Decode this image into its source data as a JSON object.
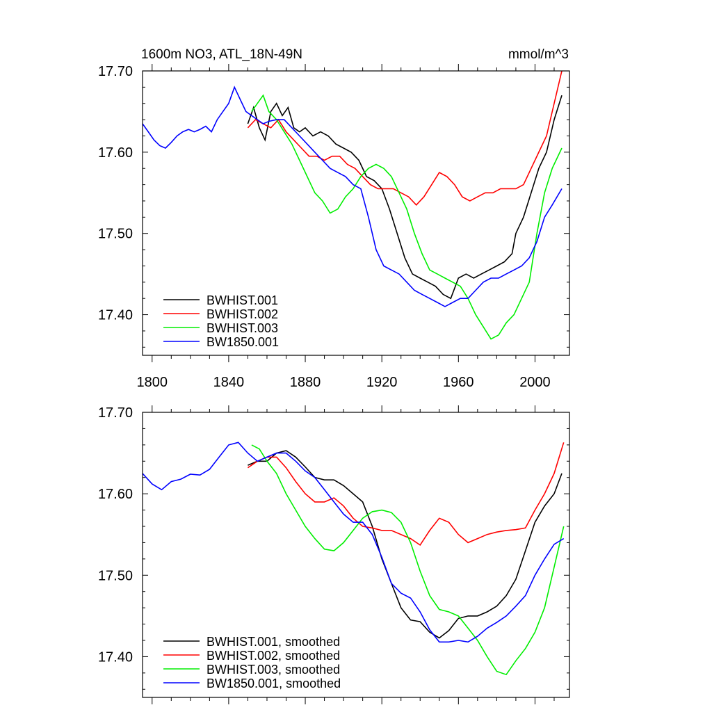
{
  "chart_data": [
    {
      "type": "line",
      "title": "1600m NO3, ATL_18N-49N",
      "units": "mmol/m^3",
      "xlim": [
        1795,
        2018
      ],
      "ylim": [
        17.35,
        17.7
      ],
      "xticks": [
        1800,
        1840,
        1880,
        1920,
        1960,
        2000
      ],
      "xtick_labels": [
        "1800",
        "1840",
        "1880",
        "1920",
        "1960",
        "2000"
      ],
      "yticks": [
        17.4,
        17.5,
        17.6,
        17.7
      ],
      "ytick_labels": [
        "17.40",
        "17.50",
        "17.60",
        "17.70"
      ],
      "legend_position": "bottom-left",
      "series": [
        {
          "name": "BWHIST.001",
          "color": "#000000",
          "x": [
            1850,
            1853,
            1856,
            1859,
            1862,
            1865,
            1868,
            1871,
            1874,
            1877,
            1880,
            1884,
            1888,
            1892,
            1896,
            1900,
            1904,
            1908,
            1912,
            1916,
            1920,
            1924,
            1928,
            1932,
            1936,
            1940,
            1944,
            1948,
            1952,
            1956,
            1960,
            1964,
            1968,
            1972,
            1976,
            1980,
            1984,
            1988,
            1990,
            1994,
            1998,
            2002,
            2006,
            2010,
            2014
          ],
          "y": [
            17.635,
            17.655,
            17.63,
            17.615,
            17.65,
            17.66,
            17.645,
            17.655,
            17.63,
            17.625,
            17.63,
            17.62,
            17.625,
            17.62,
            17.61,
            17.605,
            17.6,
            17.59,
            17.57,
            17.565,
            17.555,
            17.53,
            17.5,
            17.47,
            17.45,
            17.445,
            17.44,
            17.435,
            17.425,
            17.42,
            17.445,
            17.45,
            17.445,
            17.45,
            17.455,
            17.46,
            17.465,
            17.475,
            17.5,
            17.52,
            17.55,
            17.58,
            17.6,
            17.64,
            17.67
          ]
        },
        {
          "name": "BWHIST.002",
          "color": "#ff0000",
          "x": [
            1850,
            1854,
            1858,
            1862,
            1866,
            1870,
            1874,
            1878,
            1882,
            1886,
            1890,
            1894,
            1898,
            1902,
            1906,
            1910,
            1914,
            1918,
            1922,
            1926,
            1930,
            1934,
            1938,
            1942,
            1946,
            1950,
            1954,
            1958,
            1962,
            1966,
            1970,
            1974,
            1978,
            1982,
            1986,
            1990,
            1994,
            1998,
            2002,
            2006,
            2010,
            2014
          ],
          "y": [
            17.63,
            17.64,
            17.635,
            17.63,
            17.64,
            17.625,
            17.615,
            17.605,
            17.595,
            17.595,
            17.59,
            17.595,
            17.595,
            17.585,
            17.58,
            17.57,
            17.56,
            17.555,
            17.555,
            17.555,
            17.55,
            17.545,
            17.535,
            17.545,
            17.56,
            17.575,
            17.57,
            17.56,
            17.545,
            17.54,
            17.545,
            17.55,
            17.55,
            17.555,
            17.555,
            17.555,
            17.56,
            17.58,
            17.6,
            17.62,
            17.66,
            17.7
          ]
        },
        {
          "name": "BWHIST.003",
          "color": "#00ee00",
          "x": [
            1852,
            1855,
            1858,
            1861,
            1865,
            1869,
            1873,
            1877,
            1881,
            1885,
            1889,
            1893,
            1897,
            1901,
            1905,
            1909,
            1913,
            1917,
            1921,
            1925,
            1929,
            1933,
            1937,
            1941,
            1945,
            1949,
            1953,
            1957,
            1961,
            1965,
            1969,
            1973,
            1977,
            1981,
            1985,
            1989,
            1993,
            1997,
            2001,
            2005,
            2009,
            2014
          ],
          "y": [
            17.65,
            17.66,
            17.67,
            17.65,
            17.64,
            17.625,
            17.61,
            17.59,
            17.57,
            17.55,
            17.54,
            17.525,
            17.53,
            17.545,
            17.555,
            17.57,
            17.58,
            17.585,
            17.58,
            17.57,
            17.55,
            17.53,
            17.5,
            17.475,
            17.455,
            17.45,
            17.445,
            17.44,
            17.435,
            17.42,
            17.4,
            17.385,
            17.37,
            17.375,
            17.39,
            17.4,
            17.42,
            17.44,
            17.5,
            17.55,
            17.58,
            17.605
          ]
        },
        {
          "name": "BW1850.001",
          "color": "#0000ff",
          "x": [
            1795,
            1798,
            1801,
            1804,
            1807,
            1810,
            1813,
            1816,
            1819,
            1822,
            1825,
            1828,
            1831,
            1834,
            1837,
            1840,
            1843,
            1846,
            1849,
            1852,
            1855,
            1858,
            1861,
            1865,
            1869,
            1873,
            1877,
            1881,
            1885,
            1889,
            1893,
            1897,
            1901,
            1905,
            1909,
            1913,
            1917,
            1921,
            1925,
            1929,
            1933,
            1937,
            1941,
            1945,
            1949,
            1953,
            1957,
            1961,
            1965,
            1969,
            1973,
            1977,
            1981,
            1985,
            1989,
            1993,
            1997,
            2001,
            2005,
            2009,
            2014
          ],
          "y": [
            17.635,
            17.625,
            17.615,
            17.608,
            17.605,
            17.612,
            17.62,
            17.625,
            17.628,
            17.625,
            17.628,
            17.632,
            17.625,
            17.64,
            17.65,
            17.66,
            17.68,
            17.665,
            17.65,
            17.645,
            17.64,
            17.635,
            17.638,
            17.64,
            17.64,
            17.63,
            17.62,
            17.61,
            17.6,
            17.59,
            17.58,
            17.575,
            17.57,
            17.56,
            17.555,
            17.52,
            17.48,
            17.46,
            17.455,
            17.45,
            17.44,
            17.43,
            17.425,
            17.42,
            17.415,
            17.41,
            17.415,
            17.42,
            17.42,
            17.43,
            17.44,
            17.445,
            17.445,
            17.45,
            17.455,
            17.46,
            17.47,
            17.49,
            17.52,
            17.535,
            17.555
          ]
        }
      ]
    },
    {
      "type": "line",
      "xlim": [
        1795,
        2018
      ],
      "ylim": [
        17.35,
        17.7
      ],
      "yticks": [
        17.4,
        17.5,
        17.6,
        17.7
      ],
      "ytick_labels": [
        "17.40",
        "17.50",
        "17.60",
        "17.70"
      ],
      "legend_position": "bottom-left",
      "series": [
        {
          "name": "BWHIST.001, smoothed",
          "color": "#000000",
          "x": [
            1850,
            1855,
            1860,
            1865,
            1870,
            1875,
            1880,
            1885,
            1890,
            1895,
            1900,
            1905,
            1910,
            1915,
            1920,
            1925,
            1930,
            1935,
            1940,
            1945,
            1950,
            1955,
            1960,
            1965,
            1970,
            1975,
            1980,
            1985,
            1990,
            1995,
            2000,
            2005,
            2010,
            2014
          ],
          "y": [
            17.635,
            17.64,
            17.64,
            17.65,
            17.653,
            17.645,
            17.633,
            17.62,
            17.617,
            17.617,
            17.61,
            17.6,
            17.59,
            17.56,
            17.52,
            17.49,
            17.46,
            17.445,
            17.443,
            17.43,
            17.423,
            17.432,
            17.447,
            17.45,
            17.45,
            17.455,
            17.462,
            17.475,
            17.495,
            17.53,
            17.565,
            17.585,
            17.6,
            17.625
          ]
        },
        {
          "name": "BWHIST.002, smoothed",
          "color": "#ff0000",
          "x": [
            1850,
            1855,
            1860,
            1865,
            1870,
            1875,
            1880,
            1885,
            1890,
            1895,
            1900,
            1905,
            1910,
            1915,
            1920,
            1925,
            1930,
            1935,
            1940,
            1945,
            1950,
            1955,
            1960,
            1965,
            1970,
            1975,
            1980,
            1985,
            1990,
            1995,
            2000,
            2005,
            2010,
            2015
          ],
          "y": [
            17.632,
            17.64,
            17.645,
            17.645,
            17.632,
            17.615,
            17.6,
            17.59,
            17.59,
            17.595,
            17.585,
            17.57,
            17.56,
            17.558,
            17.555,
            17.555,
            17.55,
            17.545,
            17.537,
            17.555,
            17.57,
            17.565,
            17.55,
            17.54,
            17.545,
            17.55,
            17.553,
            17.555,
            17.556,
            17.558,
            17.58,
            17.6,
            17.625,
            17.663
          ]
        },
        {
          "name": "BWHIST.003, smoothed",
          "color": "#00ee00",
          "x": [
            1852,
            1856,
            1860,
            1865,
            1870,
            1875,
            1880,
            1885,
            1890,
            1895,
            1900,
            1905,
            1910,
            1915,
            1920,
            1925,
            1930,
            1935,
            1940,
            1945,
            1950,
            1955,
            1960,
            1965,
            1970,
            1975,
            1980,
            1985,
            1990,
            1995,
            2000,
            2005,
            2010,
            2015
          ],
          "y": [
            17.66,
            17.655,
            17.64,
            17.625,
            17.6,
            17.58,
            17.56,
            17.545,
            17.532,
            17.53,
            17.54,
            17.555,
            17.57,
            17.578,
            17.58,
            17.577,
            17.565,
            17.54,
            17.505,
            17.475,
            17.458,
            17.455,
            17.45,
            17.435,
            17.42,
            17.4,
            17.382,
            17.378,
            17.395,
            17.41,
            17.43,
            17.46,
            17.51,
            17.56
          ]
        },
        {
          "name": "BW1850.001, smoothed",
          "color": "#0000ff",
          "x": [
            1795,
            1800,
            1805,
            1810,
            1815,
            1820,
            1825,
            1830,
            1835,
            1840,
            1845,
            1850,
            1855,
            1860,
            1865,
            1870,
            1875,
            1880,
            1885,
            1890,
            1895,
            1900,
            1905,
            1910,
            1915,
            1920,
            1925,
            1930,
            1935,
            1940,
            1945,
            1950,
            1955,
            1960,
            1965,
            1970,
            1975,
            1980,
            1985,
            1990,
            1995,
            2000,
            2005,
            2010,
            2015
          ],
          "y": [
            17.625,
            17.612,
            17.605,
            17.615,
            17.618,
            17.624,
            17.623,
            17.63,
            17.645,
            17.66,
            17.663,
            17.65,
            17.64,
            17.645,
            17.65,
            17.65,
            17.64,
            17.628,
            17.62,
            17.605,
            17.59,
            17.575,
            17.565,
            17.565,
            17.55,
            17.522,
            17.49,
            17.478,
            17.472,
            17.455,
            17.433,
            17.418,
            17.418,
            17.42,
            17.418,
            17.425,
            17.435,
            17.442,
            17.45,
            17.462,
            17.475,
            17.5,
            17.52,
            17.538,
            17.545
          ]
        }
      ]
    }
  ]
}
